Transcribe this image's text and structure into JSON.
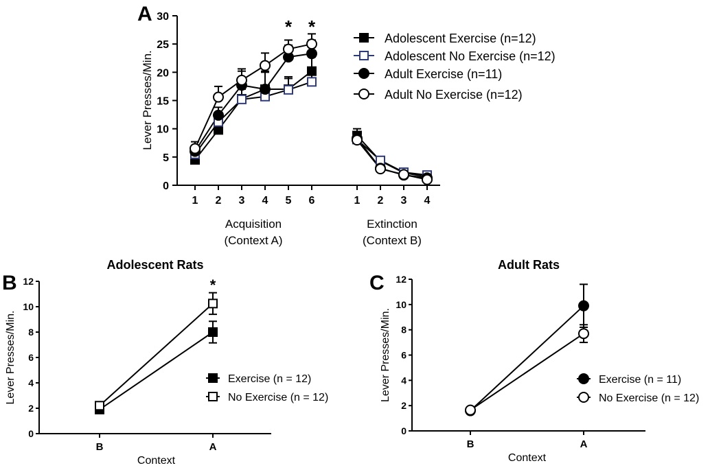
{
  "chart_data": [
    {
      "panel": "A",
      "type": "line",
      "ylabel": "Lever Presses/Min.",
      "ylim": [
        0,
        30
      ],
      "yticks": [
        0,
        5,
        10,
        15,
        20,
        25,
        30
      ],
      "groups": [
        {
          "label": "Acquisition",
          "sublabel": "(Context  A)",
          "x": [
            1,
            2,
            3,
            4,
            5,
            6
          ]
        },
        {
          "label": "Extinction",
          "sublabel": "(Context  B)",
          "x": [
            1,
            2,
            3,
            4
          ]
        }
      ],
      "legend_position": "top-right",
      "significance": [
        {
          "group": 0,
          "x": 5,
          "label": "*"
        },
        {
          "group": 0,
          "x": 6,
          "label": "*"
        }
      ],
      "series": [
        {
          "name": "Adolescent Exercise (n=12)",
          "marker": "square-filled",
          "color": "#000000",
          "values": [
            [
              4.5,
              9.8,
              15.3,
              17.0,
              17.0,
              20.2
            ],
            [
              8.8,
              4.3,
              2.2,
              1.5
            ]
          ],
          "errors": [
            [
              0.9,
              1.6,
              2.1,
              3.0,
              2.2,
              2.5
            ],
            [
              1.2,
              0.6,
              0.4,
              0.4
            ]
          ]
        },
        {
          "name": "Adolescent No Exercise (n=12)",
          "marker": "square-open",
          "color": "#2e3a78",
          "values": [
            [
              5.5,
              11.2,
              15.2,
              15.7,
              16.9,
              18.3
            ],
            [
              8.1,
              4.4,
              2.3,
              1.8
            ]
          ],
          "errors": [
            [
              1.0,
              1.5,
              1.8,
              1.9,
              2.0,
              1.8
            ],
            [
              1.0,
              0.6,
              0.4,
              0.4
            ]
          ]
        },
        {
          "name": "Adult Exercise (n=11)",
          "marker": "circle-filled",
          "color": "#000000",
          "values": [
            [
              6.0,
              12.4,
              17.7,
              17.0,
              22.7,
              23.3
            ],
            [
              8.3,
              3.0,
              1.8,
              1.3
            ]
          ],
          "errors": [
            [
              1.0,
              1.4,
              2.5,
              3.2,
              2.1,
              2.4
            ],
            [
              1.0,
              0.5,
              0.4,
              0.4
            ]
          ]
        },
        {
          "name": "Adult No Exercise (n=12)",
          "marker": "circle-open",
          "color": "#000000",
          "values": [
            [
              6.5,
              15.6,
              18.6,
              21.2,
              24.1,
              25.0
            ],
            [
              8.0,
              2.9,
              1.9,
              1.0
            ]
          ],
          "errors": [
            [
              1.2,
              1.9,
              2.0,
              2.2,
              1.6,
              1.8
            ],
            [
              1.0,
              0.5,
              0.4,
              0.4
            ]
          ]
        }
      ]
    },
    {
      "panel": "B",
      "type": "line",
      "title": "Adolescent Rats",
      "xlabel": "Context",
      "ylabel": "Lever Presses/Min.",
      "categories": [
        "B",
        "A"
      ],
      "ylim": [
        0,
        12
      ],
      "yticks": [
        0,
        2,
        4,
        6,
        8,
        10,
        12
      ],
      "legend_position": "right",
      "significance": [
        {
          "x": "A",
          "label": "*"
        }
      ],
      "series": [
        {
          "name": "Exercise (n = 12)",
          "marker": "square-filled",
          "values": [
            1.9,
            8.0
          ],
          "errors": [
            0.2,
            0.85
          ]
        },
        {
          "name": "No Exercise (n = 12)",
          "marker": "square-open",
          "values": [
            2.2,
            10.25
          ],
          "errors": [
            0.2,
            0.85
          ]
        }
      ]
    },
    {
      "panel": "C",
      "type": "line",
      "title": "Adult  Rats",
      "xlabel": "Context",
      "ylabel": "Lever Presses/Min.",
      "categories": [
        "B",
        "A"
      ],
      "ylim": [
        0,
        12
      ],
      "yticks": [
        0,
        2,
        4,
        6,
        8,
        10,
        12
      ],
      "legend_position": "right",
      "series": [
        {
          "name": "Exercise (n = 11)",
          "marker": "circle-filled",
          "values": [
            1.6,
            9.9
          ],
          "errors": [
            0.2,
            1.7
          ]
        },
        {
          "name": "No Exercise (n = 12)",
          "marker": "circle-open",
          "values": [
            1.65,
            7.7
          ],
          "errors": [
            0.2,
            0.7
          ]
        }
      ]
    }
  ]
}
